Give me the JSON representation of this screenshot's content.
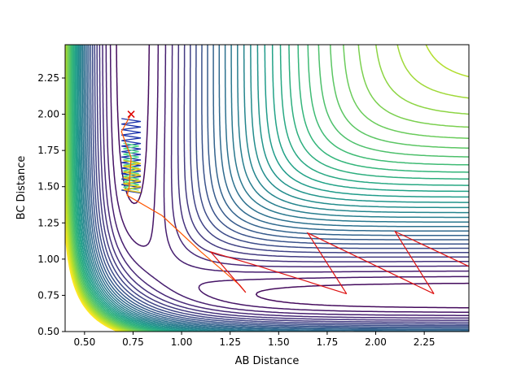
{
  "chart_data": {
    "type": "contour",
    "title": "",
    "xlabel": "AB Distance",
    "ylabel": "BC Distance",
    "xlim": [
      0.4,
      2.48
    ],
    "ylim": [
      0.5,
      2.48
    ],
    "xticks": [
      "0.50",
      "0.75",
      "1.00",
      "1.25",
      "1.50",
      "1.75",
      "2.00",
      "2.25"
    ],
    "yticks": [
      "0.50",
      "0.75",
      "1.00",
      "1.25",
      "1.50",
      "1.75",
      "2.00",
      "2.25"
    ],
    "grid": false,
    "legend": "none",
    "colormap": "viridis",
    "contour_levels": 36,
    "start_marker": {
      "x": 0.74,
      "y": 2.0,
      "symbol": "x",
      "color": "#dd0000"
    },
    "trajectories": [
      {
        "color": "#ff5500",
        "points": [
          [
            0.74,
            2.0
          ],
          [
            0.69,
            1.88
          ],
          [
            0.74,
            1.7
          ],
          [
            0.73,
            1.5
          ],
          [
            0.72,
            1.44
          ],
          [
            0.9,
            1.3
          ],
          [
            1.1,
            1.05
          ],
          [
            1.3,
            0.82
          ],
          [
            1.33,
            0.77
          ]
        ]
      },
      {
        "color": "#dd1111",
        "points": [
          [
            1.33,
            0.77
          ],
          [
            1.15,
            1.05
          ],
          [
            1.4,
            0.95
          ],
          [
            1.85,
            0.76
          ]
        ]
      },
      {
        "color": "#dd1111",
        "points": [
          [
            1.85,
            0.76
          ],
          [
            1.65,
            1.18
          ],
          [
            2.3,
            0.76
          ]
        ]
      },
      {
        "color": "#dd1111",
        "points": [
          [
            2.3,
            0.76
          ],
          [
            2.1,
            1.19
          ],
          [
            2.48,
            0.95
          ]
        ]
      }
    ]
  }
}
